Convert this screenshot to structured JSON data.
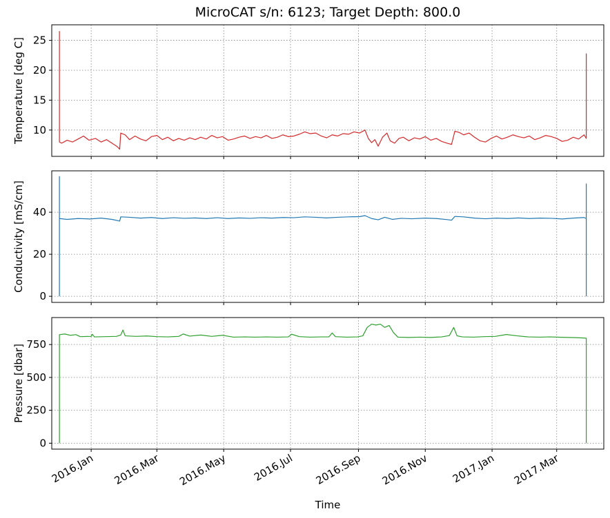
{
  "chart_data": {
    "type": "line",
    "title": "MicroCAT s/n: 6123; Target Depth: 800.0",
    "xlabel": "Time",
    "x_range": [
      "2015-11-26",
      "2017-04-13"
    ],
    "x_ticks": [
      {
        "date": "2016-01-01",
        "label": "2016.Jan"
      },
      {
        "date": "2016-03-01",
        "label": "2016.Mar"
      },
      {
        "date": "2016-05-01",
        "label": "2016.May"
      },
      {
        "date": "2016-07-01",
        "label": "2016.Jul"
      },
      {
        "date": "2016-09-01",
        "label": "2016.Sep"
      },
      {
        "date": "2016-11-01",
        "label": "2016.Nov"
      },
      {
        "date": "2017-01-01",
        "label": "2017.Jan"
      },
      {
        "date": "2017-03-01",
        "label": "2017.Mar"
      }
    ],
    "grid": true,
    "panels": [
      {
        "name": "temperature",
        "ylabel": "Temperature [deg C]",
        "color": "#d62728",
        "ylim": [
          5.6,
          27.6
        ],
        "yticks": [
          10,
          15,
          20,
          25
        ],
        "points": [
          [
            "2015-12-03",
            21.5
          ],
          [
            "2015-12-03",
            26.5
          ],
          [
            "2015-12-03",
            8.0
          ],
          [
            "2015-12-05",
            7.8
          ],
          [
            "2015-12-10",
            8.3
          ],
          [
            "2015-12-15",
            8.0
          ],
          [
            "2015-12-20",
            8.5
          ],
          [
            "2015-12-25",
            9.0
          ],
          [
            "2015-12-30",
            8.3
          ],
          [
            "2016-01-05",
            8.6
          ],
          [
            "2016-01-10",
            8.0
          ],
          [
            "2016-01-15",
            8.4
          ],
          [
            "2016-01-20",
            7.8
          ],
          [
            "2016-01-25",
            7.2
          ],
          [
            "2016-01-27",
            6.8
          ],
          [
            "2016-01-28",
            9.5
          ],
          [
            "2016-02-01",
            9.2
          ],
          [
            "2016-02-05",
            8.4
          ],
          [
            "2016-02-10",
            9.0
          ],
          [
            "2016-02-15",
            8.5
          ],
          [
            "2016-02-20",
            8.2
          ],
          [
            "2016-02-25",
            8.9
          ],
          [
            "2016-03-01",
            9.1
          ],
          [
            "2016-03-06",
            8.4
          ],
          [
            "2016-03-11",
            8.8
          ],
          [
            "2016-03-16",
            8.2
          ],
          [
            "2016-03-21",
            8.6
          ],
          [
            "2016-03-26",
            8.3
          ],
          [
            "2016-03-31",
            8.7
          ],
          [
            "2016-04-05",
            8.4
          ],
          [
            "2016-04-10",
            8.8
          ],
          [
            "2016-04-15",
            8.5
          ],
          [
            "2016-04-20",
            9.1
          ],
          [
            "2016-04-25",
            8.7
          ],
          [
            "2016-04-30",
            8.9
          ],
          [
            "2016-05-05",
            8.3
          ],
          [
            "2016-05-10",
            8.5
          ],
          [
            "2016-05-15",
            8.8
          ],
          [
            "2016-05-20",
            9.0
          ],
          [
            "2016-05-25",
            8.6
          ],
          [
            "2016-05-30",
            8.9
          ],
          [
            "2016-06-04",
            8.7
          ],
          [
            "2016-06-09",
            9.1
          ],
          [
            "2016-06-14",
            8.6
          ],
          [
            "2016-06-19",
            8.8
          ],
          [
            "2016-06-24",
            9.2
          ],
          [
            "2016-06-29",
            8.9
          ],
          [
            "2016-07-04",
            9.0
          ],
          [
            "2016-07-09",
            9.3
          ],
          [
            "2016-07-14",
            9.7
          ],
          [
            "2016-07-19",
            9.4
          ],
          [
            "2016-07-24",
            9.5
          ],
          [
            "2016-07-29",
            9.0
          ],
          [
            "2016-08-03",
            8.7
          ],
          [
            "2016-08-08",
            9.2
          ],
          [
            "2016-08-13",
            9.0
          ],
          [
            "2016-08-18",
            9.4
          ],
          [
            "2016-08-23",
            9.3
          ],
          [
            "2016-08-28",
            9.7
          ],
          [
            "2016-09-02",
            9.5
          ],
          [
            "2016-09-07",
            10.0
          ],
          [
            "2016-09-10",
            8.6
          ],
          [
            "2016-09-13",
            7.9
          ],
          [
            "2016-09-16",
            8.4
          ],
          [
            "2016-09-19",
            7.3
          ],
          [
            "2016-09-23",
            8.8
          ],
          [
            "2016-09-27",
            9.5
          ],
          [
            "2016-09-30",
            8.2
          ],
          [
            "2016-10-04",
            7.8
          ],
          [
            "2016-10-08",
            8.6
          ],
          [
            "2016-10-12",
            8.8
          ],
          [
            "2016-10-17",
            8.2
          ],
          [
            "2016-10-22",
            8.7
          ],
          [
            "2016-10-27",
            8.5
          ],
          [
            "2016-11-01",
            8.9
          ],
          [
            "2016-11-06",
            8.3
          ],
          [
            "2016-11-11",
            8.6
          ],
          [
            "2016-11-16",
            8.1
          ],
          [
            "2016-11-21",
            7.8
          ],
          [
            "2016-11-25",
            7.6
          ],
          [
            "2016-11-28",
            9.8
          ],
          [
            "2016-12-02",
            9.6
          ],
          [
            "2016-12-06",
            9.2
          ],
          [
            "2016-12-11",
            9.5
          ],
          [
            "2016-12-16",
            8.8
          ],
          [
            "2016-12-21",
            8.2
          ],
          [
            "2016-12-26",
            8.0
          ],
          [
            "2016-12-31",
            8.6
          ],
          [
            "2017-01-05",
            9.0
          ],
          [
            "2017-01-10",
            8.5
          ],
          [
            "2017-01-15",
            8.8
          ],
          [
            "2017-01-20",
            9.2
          ],
          [
            "2017-01-25",
            8.9
          ],
          [
            "2017-01-30",
            8.7
          ],
          [
            "2017-02-04",
            9.0
          ],
          [
            "2017-02-09",
            8.4
          ],
          [
            "2017-02-14",
            8.7
          ],
          [
            "2017-02-19",
            9.1
          ],
          [
            "2017-02-24",
            8.9
          ],
          [
            "2017-03-01",
            8.6
          ],
          [
            "2017-03-06",
            8.1
          ],
          [
            "2017-03-11",
            8.3
          ],
          [
            "2017-03-16",
            8.8
          ],
          [
            "2017-03-21",
            8.5
          ],
          [
            "2017-03-26",
            9.2
          ],
          [
            "2017-03-28",
            8.6
          ],
          [
            "2017-03-28",
            22.8
          ]
        ]
      },
      {
        "name": "conductivity",
        "ylabel": "Conductivity [mS/cm]",
        "color": "#1f77b4",
        "ylim": [
          -2.9,
          59.7
        ],
        "yticks": [
          0,
          20,
          40
        ],
        "points": [
          [
            "2015-12-03",
            0.0
          ],
          [
            "2015-12-03",
            57.0
          ],
          [
            "2015-12-03",
            37.0
          ],
          [
            "2015-12-10",
            36.6
          ],
          [
            "2015-12-20",
            37.0
          ],
          [
            "2015-12-31",
            36.8
          ],
          [
            "2016-01-10",
            37.2
          ],
          [
            "2016-01-20",
            36.6
          ],
          [
            "2016-01-27",
            35.8
          ],
          [
            "2016-01-28",
            37.8
          ],
          [
            "2016-02-05",
            37.6
          ],
          [
            "2016-02-15",
            37.2
          ],
          [
            "2016-02-25",
            37.5
          ],
          [
            "2016-03-06",
            37.0
          ],
          [
            "2016-03-16",
            37.4
          ],
          [
            "2016-03-26",
            37.1
          ],
          [
            "2016-04-05",
            37.3
          ],
          [
            "2016-04-15",
            37.0
          ],
          [
            "2016-04-25",
            37.4
          ],
          [
            "2016-05-05",
            37.0
          ],
          [
            "2016-05-15",
            37.3
          ],
          [
            "2016-05-25",
            37.1
          ],
          [
            "2016-06-04",
            37.4
          ],
          [
            "2016-06-14",
            37.2
          ],
          [
            "2016-06-24",
            37.5
          ],
          [
            "2016-07-04",
            37.4
          ],
          [
            "2016-07-14",
            37.8
          ],
          [
            "2016-07-24",
            37.6
          ],
          [
            "2016-08-03",
            37.3
          ],
          [
            "2016-08-13",
            37.6
          ],
          [
            "2016-08-23",
            37.8
          ],
          [
            "2016-09-02",
            37.9
          ],
          [
            "2016-09-07",
            38.4
          ],
          [
            "2016-09-13",
            37.0
          ],
          [
            "2016-09-19",
            36.4
          ],
          [
            "2016-09-25",
            37.6
          ],
          [
            "2016-10-02",
            36.6
          ],
          [
            "2016-10-10",
            37.1
          ],
          [
            "2016-10-20",
            36.9
          ],
          [
            "2016-11-01",
            37.2
          ],
          [
            "2016-11-11",
            37.0
          ],
          [
            "2016-11-21",
            36.5
          ],
          [
            "2016-11-25",
            36.2
          ],
          [
            "2016-11-28",
            38.0
          ],
          [
            "2016-12-06",
            37.8
          ],
          [
            "2016-12-16",
            37.2
          ],
          [
            "2016-12-26",
            36.9
          ],
          [
            "2017-01-05",
            37.2
          ],
          [
            "2017-01-15",
            37.0
          ],
          [
            "2017-01-25",
            37.3
          ],
          [
            "2017-02-04",
            37.0
          ],
          [
            "2017-02-14",
            37.2
          ],
          [
            "2017-02-24",
            37.1
          ],
          [
            "2017-03-06",
            36.8
          ],
          [
            "2017-03-16",
            37.2
          ],
          [
            "2017-03-26",
            37.5
          ],
          [
            "2017-03-28",
            37.0
          ],
          [
            "2017-03-28",
            53.5
          ],
          [
            "2017-03-28",
            0.0
          ]
        ]
      },
      {
        "name": "pressure",
        "ylabel": "Pressure [dbar]",
        "color": "#2ca02c",
        "ylim": [
          -45,
          955
        ],
        "yticks": [
          0,
          250,
          500,
          750
        ],
        "points": [
          [
            "2015-12-03",
            0
          ],
          [
            "2015-12-03",
            825
          ],
          [
            "2015-12-08",
            830
          ],
          [
            "2015-12-13",
            820
          ],
          [
            "2015-12-18",
            825
          ],
          [
            "2015-12-22",
            810
          ],
          [
            "2016-01-01",
            812
          ],
          [
            "2016-01-02",
            828
          ],
          [
            "2016-01-04",
            808
          ],
          [
            "2016-01-14",
            810
          ],
          [
            "2016-01-24",
            812
          ],
          [
            "2016-01-28",
            822
          ],
          [
            "2016-01-30",
            860
          ],
          [
            "2016-02-01",
            816
          ],
          [
            "2016-02-11",
            812
          ],
          [
            "2016-02-21",
            815
          ],
          [
            "2016-03-01",
            810
          ],
          [
            "2016-03-11",
            808
          ],
          [
            "2016-03-21",
            812
          ],
          [
            "2016-03-25",
            830
          ],
          [
            "2016-03-31",
            814
          ],
          [
            "2016-04-10",
            822
          ],
          [
            "2016-04-20",
            812
          ],
          [
            "2016-04-30",
            820
          ],
          [
            "2016-05-10",
            806
          ],
          [
            "2016-05-20",
            808
          ],
          [
            "2016-05-30",
            806
          ],
          [
            "2016-06-09",
            808
          ],
          [
            "2016-06-19",
            806
          ],
          [
            "2016-06-29",
            808
          ],
          [
            "2016-07-02",
            828
          ],
          [
            "2016-07-09",
            810
          ],
          [
            "2016-07-19",
            806
          ],
          [
            "2016-07-29",
            808
          ],
          [
            "2016-08-05",
            808
          ],
          [
            "2016-08-08",
            838
          ],
          [
            "2016-08-11",
            810
          ],
          [
            "2016-08-21",
            806
          ],
          [
            "2016-08-31",
            808
          ],
          [
            "2016-09-05",
            816
          ],
          [
            "2016-09-09",
            880
          ],
          [
            "2016-09-13",
            905
          ],
          [
            "2016-09-17",
            898
          ],
          [
            "2016-09-21",
            905
          ],
          [
            "2016-09-25",
            880
          ],
          [
            "2016-09-29",
            895
          ],
          [
            "2016-10-03",
            840
          ],
          [
            "2016-10-07",
            806
          ],
          [
            "2016-10-17",
            804
          ],
          [
            "2016-10-27",
            806
          ],
          [
            "2016-11-06",
            804
          ],
          [
            "2016-11-16",
            808
          ],
          [
            "2016-11-23",
            818
          ],
          [
            "2016-11-27",
            880
          ],
          [
            "2016-11-30",
            816
          ],
          [
            "2016-12-05",
            808
          ],
          [
            "2016-12-15",
            806
          ],
          [
            "2016-12-25",
            810
          ],
          [
            "2017-01-04",
            812
          ],
          [
            "2017-01-14",
            826
          ],
          [
            "2017-01-24",
            816
          ],
          [
            "2017-02-03",
            808
          ],
          [
            "2017-02-13",
            806
          ],
          [
            "2017-02-23",
            808
          ],
          [
            "2017-03-05",
            805
          ],
          [
            "2017-03-15",
            803
          ],
          [
            "2017-03-25",
            800
          ],
          [
            "2017-03-28",
            798
          ],
          [
            "2017-03-28",
            0
          ]
        ]
      }
    ]
  }
}
